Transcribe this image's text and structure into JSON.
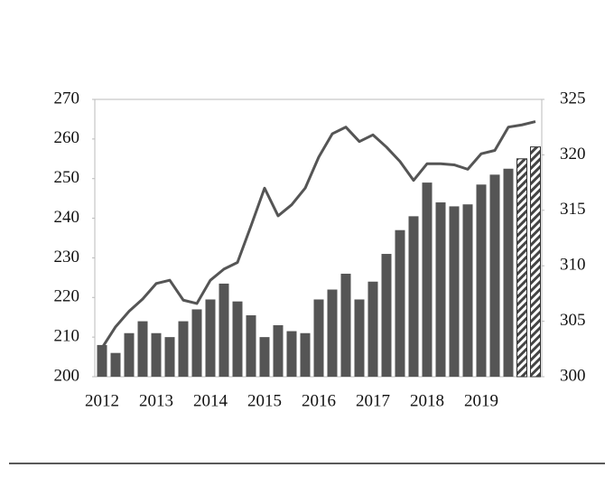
{
  "chart_data": {
    "type": "combo",
    "categories": [
      "2012",
      null,
      null,
      null,
      "2013",
      null,
      null,
      null,
      "2014",
      null,
      null,
      null,
      "2015",
      null,
      null,
      null,
      "2016",
      null,
      null,
      null,
      "2017",
      null,
      null,
      null,
      "2018",
      null,
      null,
      null,
      "2019",
      null,
      null,
      null,
      null
    ],
    "series": [
      {
        "type": "bar",
        "color": "#555555",
        "hatch_from_index": 31,
        "values": [
          208,
          206,
          211,
          214,
          211,
          210,
          214,
          217,
          219.5,
          223.5,
          219,
          215.5,
          210,
          213,
          211.5,
          211,
          219.5,
          222,
          226,
          219.5,
          224,
          231,
          237,
          240.5,
          249,
          244,
          243,
          243.5,
          248.5,
          251,
          252.5,
          255,
          258
        ]
      },
      {
        "type": "line",
        "axis": "y2",
        "color": "#555555",
        "values": [
          302.6,
          304.5,
          305.9,
          307,
          308.4,
          308.7,
          306.9,
          306.6,
          308.7,
          309.7,
          310.3,
          313.6,
          317,
          314.5,
          315.5,
          317,
          319.8,
          321.9,
          322.5,
          321.2,
          321.8,
          320.7,
          319.4,
          317.7,
          319.2,
          319.2,
          319.1,
          318.7,
          320.1,
          320.4,
          322.5,
          322.7,
          323
        ]
      }
    ],
    "ylim": [
      200,
      270
    ],
    "yticks": [
      200,
      210,
      220,
      230,
      240,
      250,
      260,
      270
    ],
    "y2lim": [
      300,
      325
    ],
    "y2ticks": [
      300,
      305,
      310,
      315,
      320,
      325
    ]
  }
}
